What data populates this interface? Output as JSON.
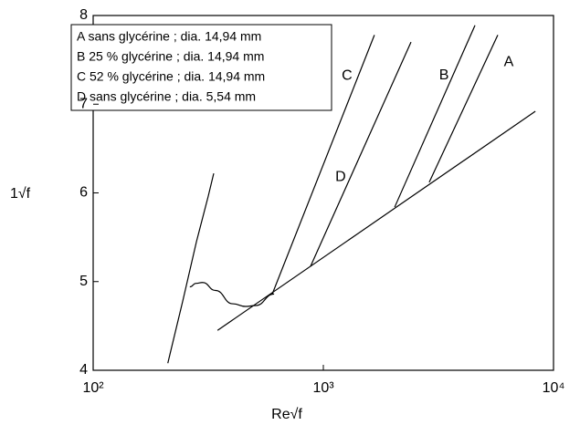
{
  "chart_data": {
    "type": "line",
    "x_label": "Re√f",
    "y_label": "1√f",
    "log_x": true,
    "xlim": [
      100,
      10000
    ],
    "xticks": [
      {
        "value": 100,
        "label": "10²"
      },
      {
        "value": 1000,
        "label": "10³"
      },
      {
        "value": 10000,
        "label": "10⁴"
      }
    ],
    "ylim": [
      4,
      8
    ],
    "yticks": [
      4,
      5,
      6,
      7,
      8
    ],
    "legend": [
      "A sans glycérine ; dia. 14,94 mm",
      "B 25 % glycérine ; dia. 14,94 mm",
      "C 52 % glycérine ; dia. 14,94 mm",
      "D sans glycérine ; dia. 5,54 mm"
    ],
    "series": [
      {
        "color": "#000000",
        "x": [
          211,
          245,
          281,
          316,
          334
        ],
        "values": [
          4.08,
          4.78,
          5.45,
          5.96,
          6.22
        ]
      },
      {
        "color": "#000000",
        "x": [
          263,
          280,
          299,
          340,
          404,
          460,
          508,
          611
        ],
        "values": [
          4.94,
          4.98,
          4.99,
          4.9,
          4.75,
          4.72,
          4.73,
          4.86
        ]
      },
      {
        "color": "#000000",
        "x": [
          347,
          8340
        ],
        "values": [
          4.45,
          6.92
        ]
      },
      {
        "name": "A",
        "color": "#000000",
        "x": [
          2884,
          5727
        ],
        "values": [
          6.12,
          7.78
        ]
      },
      {
        "name": "B",
        "color": "#000000",
        "x": [
          2042,
          4560
        ],
        "values": [
          5.84,
          7.89
        ]
      },
      {
        "name": "C",
        "color": "#000000",
        "x": [
          600,
          1667
        ],
        "values": [
          4.86,
          7.78
        ]
      },
      {
        "name": "D",
        "color": "#000000",
        "x": [
          879,
          2404
        ],
        "values": [
          5.17,
          7.7
        ]
      }
    ]
  }
}
